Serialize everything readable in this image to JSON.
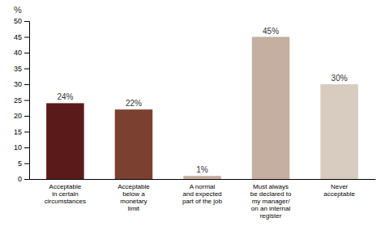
{
  "chart_data": {
    "type": "bar",
    "ylabel": "%",
    "categories": [
      "Acceptable\nin certain\ncircumstances",
      "Acceptable\nbelow a\nmonetary\nlimit",
      "A normal\nand expected\npart of the job",
      "Must always\nbe declared to\nmy manager/\non an internal\nregister",
      "Never\nacceptable"
    ],
    "values": [
      24,
      22,
      1,
      45,
      30
    ],
    "value_labels": [
      "24%",
      "22%",
      "1%",
      "45%",
      "30%"
    ],
    "colors": [
      "#5B1A1A",
      "#7B4030",
      "#C4AFA0",
      "#C4AFA0",
      "#D8CBC0"
    ],
    "data_labels": true,
    "ylim": [
      0,
      50
    ],
    "yticks": [
      0,
      5,
      10,
      15,
      20,
      25,
      30,
      35,
      40,
      45,
      50
    ],
    "grid": false
  }
}
